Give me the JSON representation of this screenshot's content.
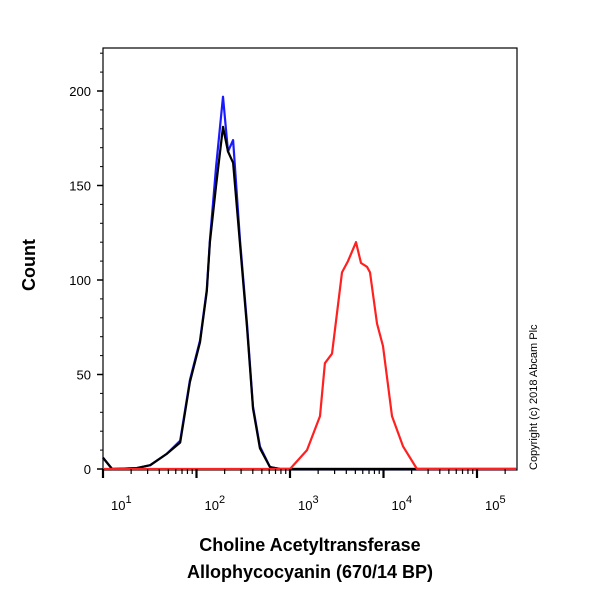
{
  "chart_data": {
    "type": "line",
    "xlabel": [
      "Choline Acetyltransferase",
      "Allophycocyanin (670/14 BP)"
    ],
    "ylabel": "Count",
    "x_scale": "log",
    "xlim": [
      10,
      262144
    ],
    "ylim": [
      0,
      222
    ],
    "y_ticks": [
      0,
      50,
      100,
      150,
      200
    ],
    "x_ticks": [
      {
        "base": "10",
        "exp": "1"
      },
      {
        "base": "10",
        "exp": "2"
      },
      {
        "base": "10",
        "exp": "3"
      },
      {
        "base": "10",
        "exp": "4"
      },
      {
        "base": "10",
        "exp": "5"
      }
    ],
    "grid": false,
    "annotation": "Copyright (c) 2018 Abcam Plc",
    "series": [
      {
        "color": "#1a1aff",
        "x": [
          10,
          12.5,
          23,
          32,
          48,
          67,
          85,
          109,
          129,
          139,
          162,
          192,
          217,
          246,
          292,
          347,
          402,
          477,
          611,
          781,
          262144
        ],
        "y": [
          6,
          0,
          0.5,
          2,
          8,
          15,
          47,
          68,
          95,
          121,
          160,
          197,
          168,
          174,
          121,
          77,
          33,
          12,
          1,
          0,
          0
        ]
      },
      {
        "color": "#000000",
        "x": [
          10,
          12.5,
          23,
          32,
          48,
          67,
          85,
          109,
          129,
          139,
          162,
          192,
          217,
          246,
          292,
          347,
          402,
          477,
          611,
          781,
          262144
        ],
        "y": [
          6,
          0,
          0.5,
          2,
          8,
          14,
          46,
          67,
          94,
          120,
          150,
          181,
          168,
          162,
          119,
          75,
          32,
          11,
          1,
          0,
          0
        ]
      },
      {
        "color": "#ff2020",
        "x": [
          10,
          1000,
          1520,
          2094,
          2364,
          2812,
          3597,
          4170,
          5077,
          5740,
          6665,
          7180,
          8520,
          9880,
          12330,
          16180,
          22800,
          262144
        ],
        "y": [
          0,
          0,
          10,
          28,
          56,
          61,
          104,
          110,
          120,
          109,
          107,
          104,
          77,
          65,
          28,
          12,
          0,
          0
        ]
      }
    ]
  }
}
